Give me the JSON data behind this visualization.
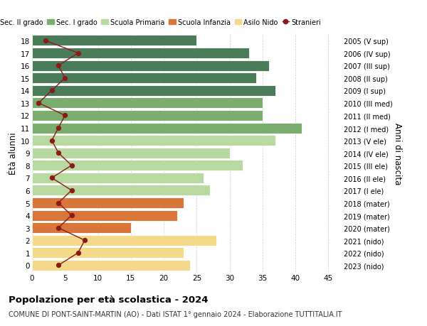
{
  "ages": [
    18,
    17,
    16,
    15,
    14,
    13,
    12,
    11,
    10,
    9,
    8,
    7,
    6,
    5,
    4,
    3,
    2,
    1,
    0
  ],
  "right_labels": [
    "2005 (V sup)",
    "2006 (IV sup)",
    "2007 (III sup)",
    "2008 (II sup)",
    "2009 (I sup)",
    "2010 (III med)",
    "2011 (II med)",
    "2012 (I med)",
    "2013 (V ele)",
    "2014 (IV ele)",
    "2015 (III ele)",
    "2016 (II ele)",
    "2017 (I ele)",
    "2018 (mater)",
    "2019 (mater)",
    "2020 (mater)",
    "2021 (nido)",
    "2022 (nido)",
    "2023 (nido)"
  ],
  "bar_values": [
    25,
    33,
    36,
    34,
    37,
    35,
    35,
    41,
    37,
    30,
    32,
    26,
    27,
    23,
    22,
    15,
    28,
    23,
    24
  ],
  "bar_colors": [
    "#4a7c59",
    "#4a7c59",
    "#4a7c59",
    "#4a7c59",
    "#4a7c59",
    "#7aad6e",
    "#7aad6e",
    "#7aad6e",
    "#b8d9a0",
    "#b8d9a0",
    "#b8d9a0",
    "#b8d9a0",
    "#b8d9a0",
    "#d9763a",
    "#d9763a",
    "#d9763a",
    "#f5d98b",
    "#f5d98b",
    "#f5d98b"
  ],
  "stranieri_values": [
    2,
    7,
    4,
    5,
    3,
    1,
    5,
    4,
    3,
    4,
    6,
    3,
    6,
    4,
    6,
    4,
    8,
    7,
    4
  ],
  "stranieri_color": "#8b1a1a",
  "legend_labels": [
    "Sec. II grado",
    "Sec. I grado",
    "Scuola Primaria",
    "Scuola Infanzia",
    "Asilo Nido",
    "Stranieri"
  ],
  "legend_colors": [
    "#4a7c59",
    "#7aad6e",
    "#b8d9a0",
    "#d9763a",
    "#f5d98b",
    "#8b1a1a"
  ],
  "ylabel_left": "Étà alunni",
  "ylabel_right": "Anni di nascita",
  "title": "Popolazione per età scolastica - 2024",
  "subtitle": "COMUNE DI PONT-SAINT-MARTIN (AO) - Dati ISTAT 1° gennaio 2024 - Elaborazione TUTTITALIA.IT",
  "xlim": [
    0,
    47
  ],
  "xticks": [
    0,
    5,
    10,
    15,
    20,
    25,
    30,
    35,
    40,
    45
  ],
  "bg_color": "#ffffff",
  "grid_color": "#cccccc"
}
